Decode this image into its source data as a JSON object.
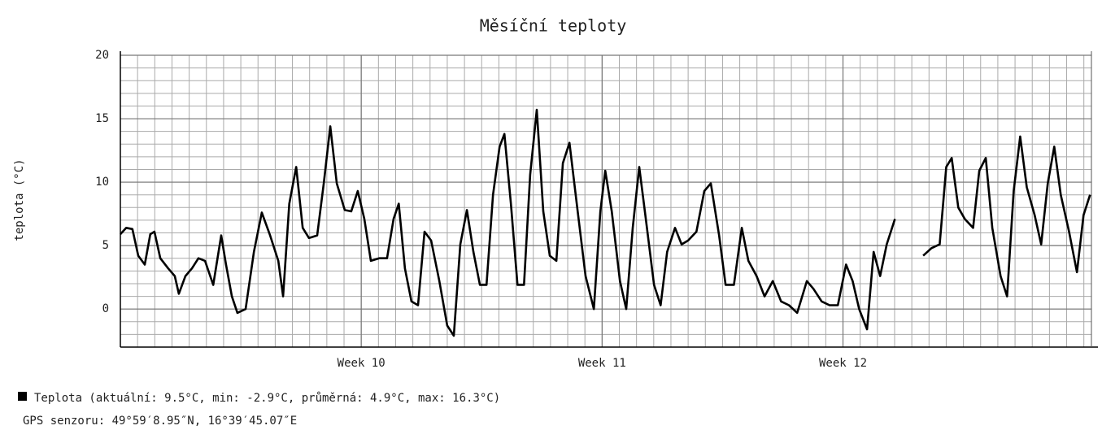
{
  "chart_data": {
    "type": "line",
    "title": "Měsíční teploty",
    "y_label": "teplota (°C)",
    "legend_text": "Teplota  (aktuální: 9.5°C,  min: -2.9°C,  průměrná: 4.9°C,  max: 16.3°C)",
    "footer": "GPS senzoru: 49°59′8.95″N, 16°39′45.07″E",
    "xlim": [
      0,
      28.22
    ],
    "ylim": [
      -3,
      20
    ],
    "yticks": [
      0,
      5,
      10,
      15,
      20
    ],
    "xticks": [
      {
        "value": 7,
        "label": "Week 10"
      },
      {
        "value": 14,
        "label": "Week 11"
      },
      {
        "value": 21,
        "label": "Week 12"
      }
    ],
    "grid": true,
    "x_grid_step": 0.5,
    "y_grid_step": 1,
    "x": [
      0,
      0.17,
      0.35,
      0.52,
      0.71,
      0.87,
      0.99,
      1.16,
      1.39,
      1.58,
      1.7,
      1.89,
      2.08,
      2.27,
      2.46,
      2.7,
      2.93,
      3.07,
      3.24,
      3.4,
      3.64,
      3.88,
      4.11,
      4.35,
      4.59,
      4.73,
      4.91,
      5.11,
      5.3,
      5.48,
      5.72,
      5.91,
      6.1,
      6.29,
      6.52,
      6.71,
      6.9,
      7.09,
      7.28,
      7.52,
      7.75,
      7.94,
      8.09,
      8.27,
      8.46,
      8.65,
      8.84,
      9.03,
      9.27,
      9.5,
      9.69,
      9.88,
      10.07,
      10.26,
      10.45,
      10.64,
      10.83,
      11.02,
      11.16,
      11.35,
      11.54,
      11.73,
      11.91,
      12.1,
      12.29,
      12.48,
      12.67,
      12.86,
      13.05,
      13.29,
      13.52,
      13.76,
      13.95,
      14.09,
      14.28,
      14.52,
      14.7,
      14.89,
      15.08,
      15.27,
      15.51,
      15.7,
      15.89,
      16.12,
      16.31,
      16.5,
      16.74,
      16.97,
      17.16,
      17.4,
      17.59,
      17.83,
      18.06,
      18.25,
      18.49,
      18.72,
      18.96,
      19.2,
      19.43,
      19.67,
      19.95,
      20.14,
      20.38,
      20.61,
      20.85,
      21.09,
      21.28,
      21.47,
      21.7,
      21.89,
      22.08,
      22.27,
      22.51,
      22.93,
      23.33,
      23.57,
      23.81,
      24,
      24.16,
      24.35,
      24.54,
      24.78,
      24.96,
      25.15,
      25.34,
      25.58,
      25.77,
      25.96,
      26.15,
      26.34,
      26.57,
      26.76,
      26.95,
      27.14,
      27.33,
      27.57,
      27.8,
      27.99,
      28.18
    ],
    "series": [
      {
        "name": "Teplota",
        "color": "#000000",
        "values": [
          5.9,
          6.4,
          6.3,
          4.2,
          3.5,
          5.9,
          6.1,
          4,
          3.2,
          2.6,
          1.2,
          2.6,
          3.2,
          4,
          3.8,
          1.9,
          5.8,
          3.5,
          1,
          -0.3,
          0,
          4.5,
          7.6,
          5.8,
          3.8,
          1,
          8.3,
          11.2,
          6.4,
          5.6,
          5.8,
          9.9,
          14.4,
          9.9,
          7.8,
          7.7,
          9.3,
          7.1,
          3.8,
          4,
          4,
          7.1,
          8.3,
          3.2,
          0.6,
          0.3,
          6.1,
          5.4,
          2.2,
          -1.3,
          -2.1,
          5.1,
          7.8,
          4.5,
          1.9,
          1.9,
          9,
          12.8,
          13.8,
          8.3,
          1.9,
          1.9,
          10.6,
          15.7,
          7.7,
          4.2,
          3.8,
          11.5,
          13.1,
          7.7,
          2.6,
          0,
          7.7,
          10.9,
          7.7,
          2.2,
          0,
          6.4,
          11.2,
          7.1,
          1.9,
          0.3,
          4.5,
          6.4,
          5.1,
          5.4,
          6.1,
          9.3,
          9.9,
          5.8,
          1.9,
          1.9,
          6.4,
          3.8,
          2.6,
          1,
          2.2,
          0.6,
          0.3,
          -0.3,
          2.2,
          1.6,
          0.6,
          0.3,
          0.3,
          3.5,
          2.2,
          0,
          -1.6,
          4.5,
          2.6,
          5.1,
          7.1,
          null,
          4.2,
          4.8,
          5.1,
          11.2,
          11.9,
          8,
          7.1,
          6.4,
          10.9,
          11.9,
          6.4,
          2.6,
          1,
          9.3,
          13.6,
          9.6,
          7.4,
          5.1,
          9.9,
          12.8,
          9,
          6.1,
          2.9,
          7.4,
          9
        ]
      }
    ]
  }
}
